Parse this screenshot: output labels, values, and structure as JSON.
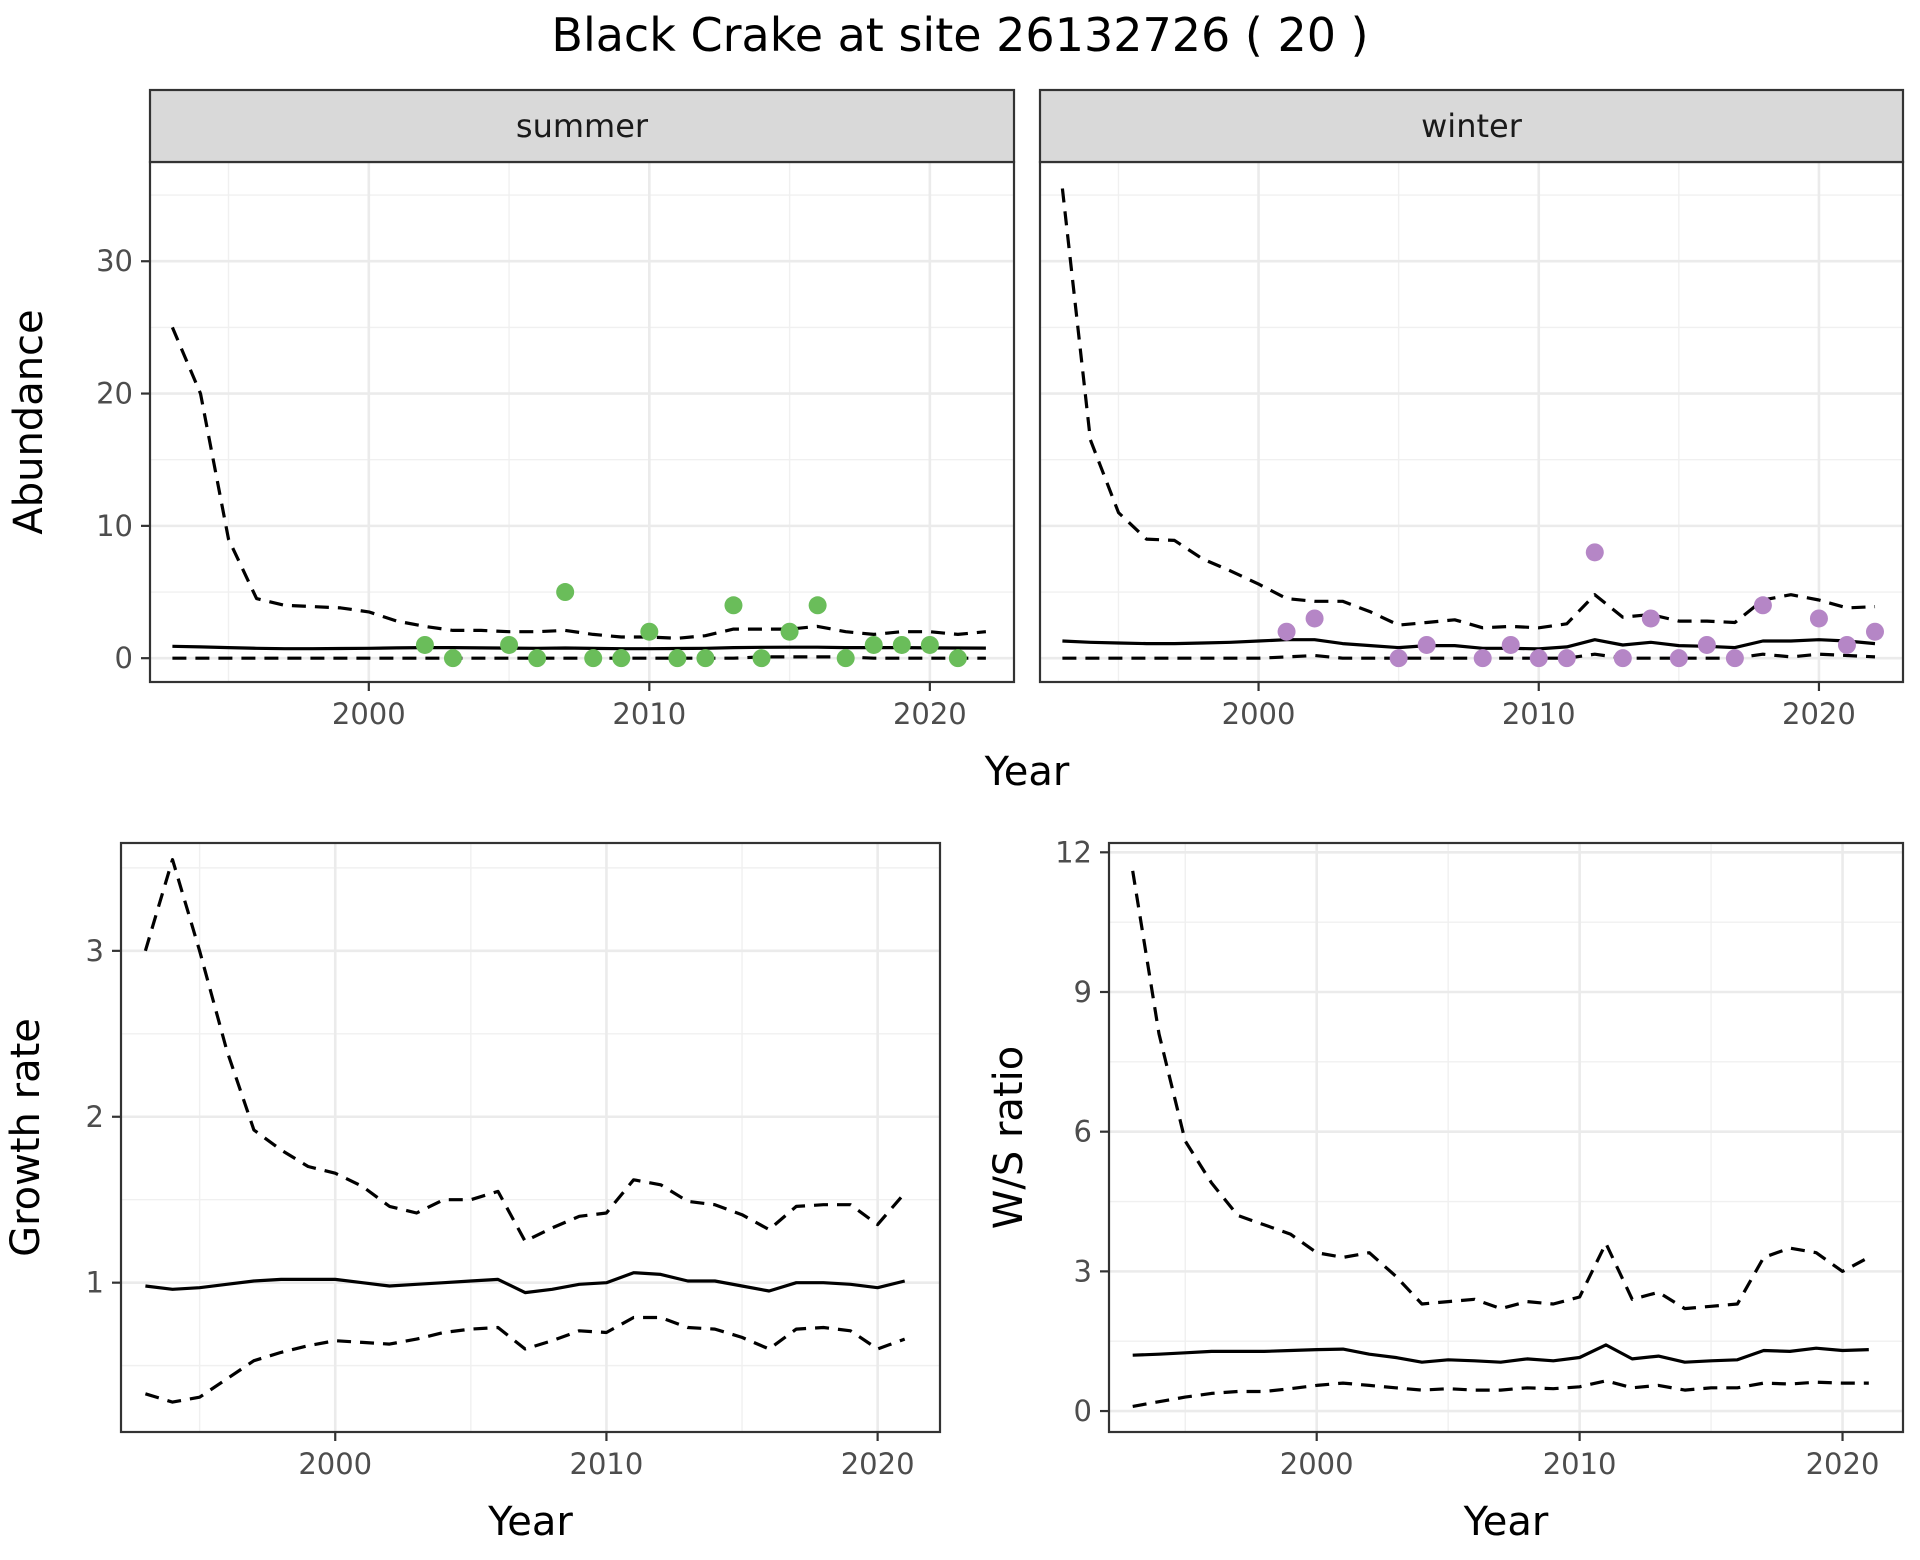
{
  "title": "Black Crake at site 26132726 ( 20 )",
  "colors": {
    "summer": "#6abd5a",
    "winter": "#b586c6",
    "line": "#000000"
  },
  "chart_data": [
    {
      "type": "line",
      "panel": "abundance-summer",
      "strip": "summer",
      "xlabel": "Year",
      "ylabel": "Abundance",
      "xlim": [
        1992.2,
        2023.0
      ],
      "ylim": [
        -1.8,
        37.5
      ],
      "xticks": [
        2000,
        2010,
        2020
      ],
      "yticks": [
        0,
        10,
        20,
        30
      ],
      "x": [
        1993,
        1994,
        1995,
        1996,
        1997,
        1998,
        1999,
        2000,
        2001,
        2002,
        2003,
        2004,
        2005,
        2006,
        2007,
        2008,
        2009,
        2010,
        2011,
        2012,
        2013,
        2014,
        2015,
        2016,
        2017,
        2018,
        2019,
        2020,
        2021,
        2022
      ],
      "series": [
        {
          "role": "mean",
          "style": "solid",
          "values": [
            0.9,
            0.85,
            0.8,
            0.75,
            0.72,
            0.72,
            0.73,
            0.75,
            0.78,
            0.8,
            0.8,
            0.78,
            0.76,
            0.75,
            0.77,
            0.74,
            0.72,
            0.72,
            0.73,
            0.75,
            0.8,
            0.82,
            0.83,
            0.83,
            0.8,
            0.8,
            0.8,
            0.78,
            0.77,
            0.76
          ]
        },
        {
          "role": "upper",
          "style": "dashed",
          "values": [
            25,
            20,
            9,
            4.5,
            4,
            3.9,
            3.8,
            3.5,
            2.8,
            2.4,
            2.1,
            2.1,
            2.0,
            2.0,
            2.1,
            1.8,
            1.6,
            1.6,
            1.5,
            1.7,
            2.2,
            2.2,
            2.2,
            2.4,
            2.0,
            1.8,
            2.0,
            2.0,
            1.8,
            2.0
          ]
        },
        {
          "role": "lower",
          "style": "dashed",
          "values": [
            0,
            0,
            0,
            0,
            0,
            0,
            0,
            0,
            0,
            0,
            0,
            0,
            0,
            0,
            0,
            0,
            0,
            0,
            0,
            0,
            0,
            0.1,
            0.1,
            0.1,
            0.1,
            0,
            0,
            0,
            0,
            0
          ]
        }
      ],
      "points": {
        "x": [
          2002,
          2003,
          2005,
          2006,
          2007,
          2008,
          2009,
          2010,
          2011,
          2012,
          2013,
          2014,
          2015,
          2016,
          2017,
          2018,
          2019,
          2020,
          2021
        ],
        "y": [
          1,
          0,
          1,
          0,
          5,
          0,
          0,
          2,
          0,
          0,
          4,
          0,
          2,
          4,
          0,
          1,
          1,
          1,
          0
        ]
      }
    },
    {
      "type": "line",
      "panel": "abundance-winter",
      "strip": "winter",
      "xlim": [
        1992.2,
        2023.0
      ],
      "ylim": [
        -1.8,
        37.5
      ],
      "xticks": [
        2000,
        2010,
        2020
      ],
      "x": [
        1993,
        1994,
        1995,
        1996,
        1997,
        1998,
        1999,
        2000,
        2001,
        2002,
        2003,
        2004,
        2005,
        2006,
        2007,
        2008,
        2009,
        2010,
        2011,
        2012,
        2013,
        2014,
        2015,
        2016,
        2017,
        2018,
        2019,
        2020,
        2021,
        2022
      ],
      "series": [
        {
          "role": "mean",
          "style": "solid",
          "values": [
            1.3,
            1.2,
            1.15,
            1.1,
            1.1,
            1.15,
            1.2,
            1.3,
            1.4,
            1.4,
            1.1,
            0.95,
            0.8,
            0.95,
            0.95,
            0.75,
            0.75,
            0.7,
            0.85,
            1.4,
            1.0,
            1.2,
            0.95,
            0.9,
            0.8,
            1.3,
            1.3,
            1.4,
            1.3,
            1.1
          ]
        },
        {
          "role": "upper",
          "style": "dashed",
          "values": [
            35.5,
            16.5,
            11,
            9,
            8.9,
            7.5,
            6.6,
            5.6,
            4.5,
            4.3,
            4.3,
            3.5,
            2.5,
            2.7,
            2.9,
            2.3,
            2.4,
            2.3,
            2.6,
            4.8,
            3.1,
            3.3,
            2.8,
            2.8,
            2.7,
            4.4,
            4.8,
            4.4,
            3.8,
            3.9
          ]
        },
        {
          "role": "lower",
          "style": "dashed",
          "values": [
            0,
            0,
            0,
            0,
            0,
            0,
            0,
            0,
            0.1,
            0.2,
            0,
            0,
            0,
            0,
            0,
            0,
            0,
            0,
            0,
            0.3,
            0,
            0,
            0,
            0,
            0,
            0.3,
            0.1,
            0.3,
            0.2,
            0.1
          ]
        }
      ],
      "points": {
        "x": [
          2001,
          2002,
          2005,
          2006,
          2008,
          2009,
          2010,
          2011,
          2012,
          2013,
          2014,
          2015,
          2016,
          2017,
          2018,
          2020,
          2021,
          2022
        ],
        "y": [
          2,
          3,
          0,
          1,
          0,
          1,
          0,
          0,
          8,
          0,
          3,
          0,
          1,
          0,
          4,
          3,
          1,
          2
        ]
      }
    },
    {
      "type": "line",
      "panel": "growth-rate",
      "xlabel": "Year",
      "ylabel": "Growth rate",
      "xlim": [
        1992.1,
        2022.3
      ],
      "ylim": [
        0.1,
        3.65
      ],
      "xticks": [
        2000,
        2010,
        2020
      ],
      "yticks": [
        1,
        2,
        3
      ],
      "x": [
        1993,
        1994,
        1995,
        1996,
        1997,
        1998,
        1999,
        2000,
        2001,
        2002,
        2003,
        2004,
        2005,
        2006,
        2007,
        2008,
        2009,
        2010,
        2011,
        2012,
        2013,
        2014,
        2015,
        2016,
        2017,
        2018,
        2019,
        2020,
        2021
      ],
      "series": [
        {
          "role": "mean",
          "style": "solid",
          "values": [
            0.98,
            0.96,
            0.97,
            0.99,
            1.01,
            1.02,
            1.02,
            1.02,
            1.0,
            0.98,
            0.99,
            1.0,
            1.01,
            1.02,
            0.94,
            0.96,
            0.99,
            1.0,
            1.06,
            1.05,
            1.01,
            1.01,
            0.98,
            0.95,
            1.0,
            1.0,
            0.99,
            0.97,
            1.01
          ]
        },
        {
          "role": "upper",
          "style": "dashed",
          "values": [
            3.0,
            3.55,
            3.0,
            2.4,
            1.92,
            1.8,
            1.7,
            1.66,
            1.58,
            1.46,
            1.42,
            1.5,
            1.5,
            1.55,
            1.25,
            1.33,
            1.4,
            1.42,
            1.62,
            1.59,
            1.49,
            1.47,
            1.41,
            1.32,
            1.46,
            1.47,
            1.47,
            1.35,
            1.54
          ]
        },
        {
          "role": "lower",
          "style": "dashed",
          "values": [
            0.33,
            0.28,
            0.31,
            0.42,
            0.53,
            0.58,
            0.62,
            0.65,
            0.64,
            0.63,
            0.66,
            0.7,
            0.72,
            0.73,
            0.6,
            0.65,
            0.71,
            0.7,
            0.79,
            0.79,
            0.73,
            0.72,
            0.67,
            0.6,
            0.72,
            0.73,
            0.71,
            0.6,
            0.66
          ]
        }
      ]
    },
    {
      "type": "line",
      "panel": "ws-ratio",
      "xlabel": "Year",
      "ylabel": "W/S ratio",
      "xlim": [
        1992.1,
        2022.3
      ],
      "ylim": [
        -0.45,
        12.2
      ],
      "xticks": [
        2000,
        2010,
        2020
      ],
      "yticks": [
        0,
        3,
        6,
        9,
        12
      ],
      "x": [
        1993,
        1994,
        1995,
        1996,
        1997,
        1998,
        1999,
        2000,
        2001,
        2002,
        2003,
        2004,
        2005,
        2006,
        2007,
        2008,
        2009,
        2010,
        2011,
        2012,
        2013,
        2014,
        2015,
        2016,
        2017,
        2018,
        2019,
        2020,
        2021
      ],
      "series": [
        {
          "role": "mean",
          "style": "solid",
          "values": [
            1.2,
            1.22,
            1.25,
            1.28,
            1.28,
            1.28,
            1.3,
            1.32,
            1.33,
            1.22,
            1.15,
            1.05,
            1.1,
            1.08,
            1.05,
            1.12,
            1.08,
            1.15,
            1.42,
            1.12,
            1.18,
            1.05,
            1.08,
            1.1,
            1.3,
            1.28,
            1.35,
            1.3,
            1.32
          ]
        },
        {
          "role": "upper",
          "style": "dashed",
          "values": [
            11.6,
            8.1,
            5.8,
            4.9,
            4.2,
            4.0,
            3.8,
            3.4,
            3.3,
            3.4,
            2.9,
            2.3,
            2.35,
            2.4,
            2.2,
            2.35,
            2.3,
            2.45,
            3.6,
            2.4,
            2.55,
            2.2,
            2.25,
            2.3,
            3.3,
            3.5,
            3.4,
            3.0,
            3.3
          ]
        },
        {
          "role": "lower",
          "style": "dashed",
          "values": [
            0.1,
            0.2,
            0.3,
            0.38,
            0.42,
            0.42,
            0.48,
            0.55,
            0.6,
            0.55,
            0.5,
            0.45,
            0.48,
            0.45,
            0.45,
            0.5,
            0.48,
            0.52,
            0.65,
            0.5,
            0.55,
            0.45,
            0.5,
            0.5,
            0.6,
            0.58,
            0.62,
            0.6,
            0.6
          ]
        }
      ]
    }
  ]
}
